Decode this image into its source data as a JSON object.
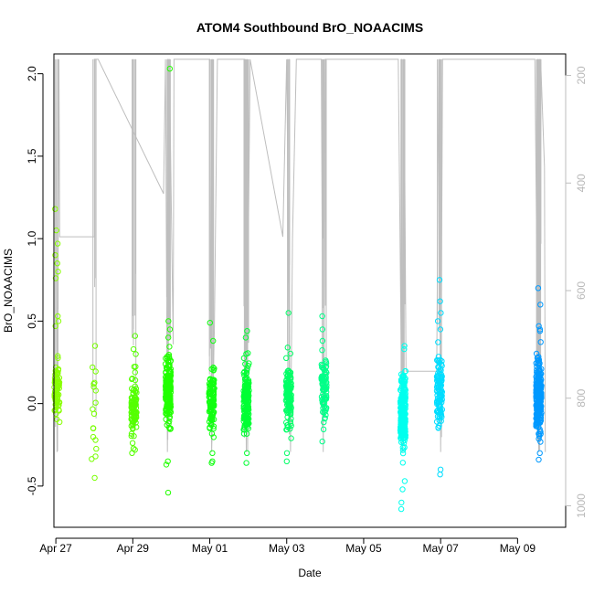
{
  "chart_data": {
    "type": "scatter",
    "title": "ATOM4 Southbound BrO_NOAACIMS",
    "xlabel": "Date",
    "ylabel": "BrO_NOAACIMS",
    "x_ticks": [
      {
        "label": "Apr 27",
        "day": 27
      },
      {
        "label": "Apr 29",
        "day": 29
      },
      {
        "label": "May 01",
        "day": 31
      },
      {
        "label": "May 03",
        "day": 33
      },
      {
        "label": "May 05",
        "day": 35
      },
      {
        "label": "May 07",
        "day": 37
      },
      {
        "label": "May 09",
        "day": 39
      }
    ],
    "xlim": [
      26.95,
      40.25
    ],
    "ylim": [
      -0.75,
      2.12
    ],
    "y_ticks": [
      "-0.5",
      "0.0",
      "0.5",
      "1.0",
      "1.5",
      "2.0"
    ],
    "right_axis": {
      "ticks": [
        "200",
        "400",
        "600",
        "800",
        "1000"
      ],
      "lim": [
        160,
        1040
      ],
      "color": "#bebebe",
      "description": "secondary axis (pressure), shown as gray trace"
    },
    "clusters": [
      {
        "day": 27.03,
        "color": "#88ff00",
        "n": 70,
        "center": 0.08,
        "spread": 0.11,
        "outliers": [
          1.18,
          1.05,
          0.97,
          0.9,
          0.85,
          0.8,
          0.76,
          0.53,
          0.5,
          0.47
        ]
      },
      {
        "day": 28.0,
        "color": "#77ff00",
        "n": 14,
        "center": 0.0,
        "spread": 0.25,
        "outliers": [
          0.35,
          0.22,
          -0.45,
          -0.32
        ]
      },
      {
        "day": 29.03,
        "color": "#55ff00",
        "n": 90,
        "center": -0.03,
        "spread": 0.13,
        "outliers": [
          0.41,
          0.33,
          0.3,
          -0.3,
          -0.28
        ]
      },
      {
        "day": 29.92,
        "color": "#22ff00",
        "n": 210,
        "center": 0.08,
        "spread": 0.15,
        "outliers": [
          2.03,
          0.5,
          0.45,
          0.4,
          -0.37,
          -0.54,
          -0.35
        ]
      },
      {
        "day": 31.05,
        "color": "#11ff11",
        "n": 120,
        "center": 0.02,
        "spread": 0.13,
        "outliers": [
          0.49,
          0.38,
          -0.36,
          -0.35,
          -0.3
        ]
      },
      {
        "day": 31.95,
        "color": "#00ff33",
        "n": 170,
        "center": 0.03,
        "spread": 0.14,
        "outliers": [
          0.44,
          0.4,
          -0.36,
          -0.3
        ]
      },
      {
        "day": 33.05,
        "color": "#00ff66",
        "n": 130,
        "center": 0.05,
        "spread": 0.13,
        "outliers": [
          0.55,
          0.34,
          -0.35,
          -0.3
        ]
      },
      {
        "day": 33.97,
        "color": "#00ff88",
        "n": 90,
        "center": 0.1,
        "spread": 0.14,
        "outliers": [
          0.53,
          0.45,
          0.38,
          -0.23
        ]
      },
      {
        "day": 36.02,
        "color": "#00ffee",
        "n": 230,
        "center": -0.05,
        "spread": 0.16,
        "outliers": [
          0.35,
          0.33,
          -0.47,
          -0.52,
          -0.6,
          -0.64
        ]
      },
      {
        "day": 36.97,
        "color": "#00ddff",
        "n": 110,
        "center": 0.08,
        "spread": 0.15,
        "outliers": [
          0.75,
          0.62,
          0.55,
          0.5,
          0.45,
          -0.4,
          -0.43
        ]
      },
      {
        "day": 39.55,
        "color": "#0099ff",
        "n": 250,
        "center": 0.05,
        "spread": 0.15,
        "outliers": [
          0.7,
          0.6,
          0.47,
          0.45,
          0.44,
          -0.3,
          -0.34
        ]
      }
    ],
    "pressure_trace": [
      [
        27.0,
        170
      ],
      [
        27.03,
        900
      ],
      [
        27.08,
        170
      ],
      [
        27.1,
        500
      ],
      [
        28.0,
        500
      ],
      [
        28.0,
        170
      ],
      [
        28.1,
        170
      ],
      [
        29.8,
        420
      ],
      [
        29.85,
        170
      ],
      [
        29.9,
        900
      ],
      [
        29.95,
        170
      ],
      [
        30.05,
        700
      ],
      [
        30.07,
        170
      ],
      [
        31.0,
        170
      ],
      [
        31.05,
        900
      ],
      [
        31.12,
        670
      ],
      [
        31.2,
        170
      ],
      [
        31.7,
        170
      ],
      [
        31.9,
        170
      ],
      [
        31.95,
        900
      ],
      [
        32.05,
        170
      ],
      [
        32.9,
        500
      ],
      [
        33.0,
        170
      ],
      [
        33.1,
        900
      ],
      [
        33.15,
        500
      ],
      [
        33.25,
        170
      ],
      [
        33.9,
        170
      ],
      [
        33.95,
        900
      ],
      [
        34.0,
        170
      ],
      [
        35.9,
        170
      ],
      [
        36.0,
        900
      ],
      [
        36.05,
        170
      ],
      [
        36.1,
        750
      ],
      [
        36.9,
        750
      ],
      [
        36.95,
        170
      ],
      [
        37.0,
        900
      ],
      [
        37.05,
        170
      ],
      [
        39.45,
        170
      ],
      [
        39.55,
        900
      ],
      [
        39.6,
        170
      ],
      [
        39.7,
        370
      ],
      [
        39.72,
        900
      ]
    ]
  }
}
